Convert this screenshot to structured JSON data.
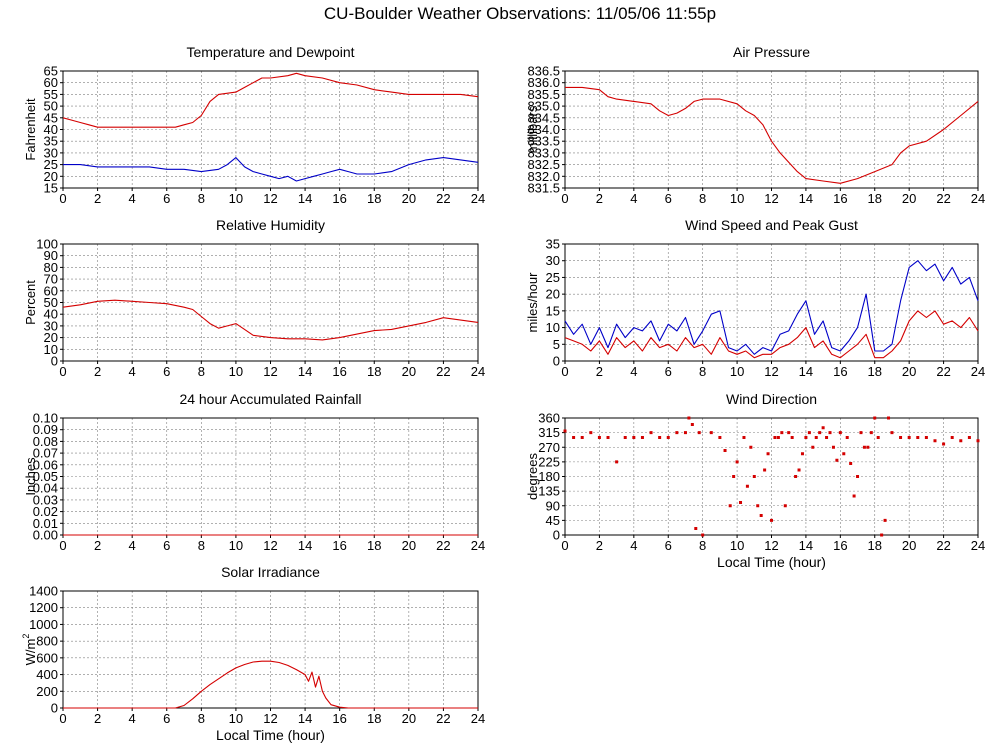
{
  "page": {
    "title": "CU-Boulder Weather Observations: 11/05/06 11:55p"
  },
  "colors": {
    "primary": "#d40000",
    "secondary": "#0000c8",
    "grid": "#808080"
  },
  "chart_data": [
    {
      "type": "line",
      "title": "Temperature and Dewpoint",
      "ylabel": "Fahrenheit",
      "xlabel": "",
      "xlim": [
        0,
        24
      ],
      "ylim": [
        15,
        65
      ],
      "xticks": [
        0,
        2,
        4,
        6,
        8,
        10,
        12,
        14,
        16,
        18,
        20,
        22,
        24
      ],
      "yticks": [
        15,
        20,
        25,
        30,
        35,
        40,
        45,
        50,
        55,
        60,
        65
      ],
      "grid": true,
      "series": [
        {
          "color": "#d40000",
          "x": [
            0,
            0.5,
            1,
            1.5,
            2,
            3,
            4,
            5,
            6,
            6.5,
            7,
            7.5,
            8,
            8.5,
            9,
            10,
            10.5,
            11,
            11.5,
            12,
            13,
            13.5,
            14,
            15,
            16,
            17,
            18,
            19,
            20,
            21,
            22,
            23,
            24
          ],
          "y": [
            45,
            44,
            43,
            42,
            41,
            41,
            41,
            41,
            41,
            41,
            42,
            43,
            46,
            52,
            55,
            56,
            58,
            60,
            62,
            62,
            63,
            64,
            63,
            62,
            60,
            59,
            57,
            56,
            55,
            55,
            55,
            55,
            54
          ]
        },
        {
          "color": "#0000c8",
          "x": [
            0,
            1,
            2,
            3,
            4,
            5,
            6,
            7,
            8,
            9,
            9.5,
            10,
            10.5,
            11,
            11.5,
            12,
            12.5,
            13,
            13.5,
            14,
            14.5,
            15,
            15.5,
            16,
            16.5,
            17,
            18,
            19,
            20,
            21,
            22,
            23,
            24
          ],
          "y": [
            25,
            25,
            24,
            24,
            24,
            24,
            23,
            23,
            22,
            23,
            25,
            28,
            24,
            22,
            21,
            20,
            19,
            20,
            18,
            19,
            20,
            21,
            22,
            23,
            22,
            21,
            21,
            22,
            25,
            27,
            28,
            27,
            26
          ]
        }
      ]
    },
    {
      "type": "line",
      "title": "Air Pressure",
      "ylabel": "millibars",
      "xlabel": "",
      "xlim": [
        0,
        24
      ],
      "ylim": [
        831.5,
        836.5
      ],
      "xticks": [
        0,
        2,
        4,
        6,
        8,
        10,
        12,
        14,
        16,
        18,
        20,
        22,
        24
      ],
      "yticks": [
        831.5,
        832.0,
        832.5,
        833.0,
        833.5,
        834.0,
        834.5,
        835.0,
        835.5,
        836.0,
        836.5
      ],
      "ytick_labels": [
        "831.5",
        "832.0",
        "832.5",
        "833.0",
        "833.5",
        "834.0",
        "834.5",
        "835.0",
        "835.5",
        "836.0",
        "836.5"
      ],
      "grid": true,
      "series": [
        {
          "color": "#d40000",
          "x": [
            0,
            1,
            2,
            2.5,
            3,
            4,
            5,
            5.5,
            6,
            6.5,
            7,
            7.5,
            8,
            9,
            10,
            10.5,
            11,
            11.5,
            12,
            12.5,
            13,
            13.5,
            14,
            15,
            16,
            17,
            18,
            19,
            19.5,
            20,
            21,
            22,
            23,
            24
          ],
          "y": [
            835.8,
            835.8,
            835.7,
            835.4,
            835.3,
            835.2,
            835.1,
            834.8,
            834.6,
            834.7,
            834.9,
            835.2,
            835.3,
            835.3,
            835.1,
            834.8,
            834.6,
            834.2,
            833.5,
            833.0,
            832.6,
            832.2,
            831.9,
            831.8,
            831.7,
            831.9,
            832.2,
            832.5,
            833.0,
            833.3,
            833.5,
            834.0,
            834.6,
            835.2
          ]
        }
      ]
    },
    {
      "type": "line",
      "title": "Relative Humidity",
      "ylabel": "Percent",
      "xlabel": "",
      "xlim": [
        0,
        24
      ],
      "ylim": [
        0,
        100
      ],
      "xticks": [
        0,
        2,
        4,
        6,
        8,
        10,
        12,
        14,
        16,
        18,
        20,
        22,
        24
      ],
      "yticks": [
        0,
        10,
        20,
        30,
        40,
        50,
        60,
        70,
        80,
        90,
        100
      ],
      "grid": true,
      "series": [
        {
          "color": "#d40000",
          "x": [
            0,
            1,
            2,
            3,
            4,
            5,
            6,
            7,
            7.5,
            8,
            8.5,
            9,
            9.5,
            10,
            10.5,
            11,
            12,
            13,
            14,
            15,
            16,
            17,
            18,
            19,
            20,
            21,
            22,
            23,
            24
          ],
          "y": [
            46,
            48,
            51,
            52,
            51,
            50,
            49,
            46,
            44,
            38,
            32,
            28,
            30,
            32,
            27,
            22,
            20,
            19,
            19,
            18,
            20,
            23,
            26,
            27,
            30,
            33,
            37,
            35,
            33
          ]
        }
      ]
    },
    {
      "type": "line",
      "title": "Wind Speed and Peak Gust",
      "ylabel": "miles/hour",
      "xlabel": "",
      "xlim": [
        0,
        24
      ],
      "ylim": [
        0,
        35
      ],
      "xticks": [
        0,
        2,
        4,
        6,
        8,
        10,
        12,
        14,
        16,
        18,
        20,
        22,
        24
      ],
      "yticks": [
        0,
        5,
        10,
        15,
        20,
        25,
        30,
        35
      ],
      "grid": true,
      "series": [
        {
          "color": "#0000c8",
          "x": [
            0,
            0.5,
            1,
            1.5,
            2,
            2.5,
            3,
            3.5,
            4,
            4.5,
            5,
            5.5,
            6,
            6.5,
            7,
            7.5,
            8,
            8.5,
            9,
            9.5,
            10,
            10.5,
            11,
            11.5,
            12,
            12.5,
            13,
            13.5,
            14,
            14.5,
            15,
            15.5,
            16,
            16.5,
            17,
            17.5,
            18,
            18.5,
            19,
            19.5,
            20,
            20.5,
            21,
            21.5,
            22,
            22.5,
            23,
            23.5,
            24
          ],
          "y": [
            12,
            8,
            11,
            5,
            10,
            4,
            11,
            7,
            10,
            9,
            12,
            6,
            11,
            9,
            13,
            5,
            9,
            14,
            15,
            4,
            3,
            5,
            2,
            4,
            3,
            8,
            9,
            14,
            18,
            8,
            12,
            4,
            3,
            6,
            10,
            20,
            3,
            3,
            5,
            18,
            28,
            30,
            27,
            29,
            24,
            28,
            23,
            25,
            18
          ]
        },
        {
          "color": "#d40000",
          "x": [
            0,
            0.5,
            1,
            1.5,
            2,
            2.5,
            3,
            3.5,
            4,
            4.5,
            5,
            5.5,
            6,
            6.5,
            7,
            7.5,
            8,
            8.5,
            9,
            9.5,
            10,
            10.5,
            11,
            11.5,
            12,
            12.5,
            13,
            13.5,
            14,
            14.5,
            15,
            15.5,
            16,
            16.5,
            17,
            17.5,
            18,
            18.5,
            19,
            19.5,
            20,
            20.5,
            21,
            21.5,
            22,
            22.5,
            23,
            23.5,
            24
          ],
          "y": [
            7,
            6,
            5,
            3,
            6,
            2,
            7,
            4,
            6,
            3,
            7,
            4,
            5,
            3,
            7,
            4,
            5,
            2,
            7,
            3,
            2,
            3,
            1,
            2,
            2,
            4,
            5,
            7,
            10,
            4,
            6,
            2,
            1,
            3,
            5,
            8,
            1,
            1,
            3,
            6,
            12,
            15,
            13,
            15,
            11,
            12,
            10,
            13,
            9
          ]
        }
      ]
    },
    {
      "type": "line",
      "title": "24 hour Accumulated Rainfall",
      "ylabel": "Inches",
      "xlabel": "",
      "xlim": [
        0,
        24
      ],
      "ylim": [
        0,
        0.1
      ],
      "xticks": [
        0,
        2,
        4,
        6,
        8,
        10,
        12,
        14,
        16,
        18,
        20,
        22,
        24
      ],
      "yticks": [
        0,
        0.01,
        0.02,
        0.03,
        0.04,
        0.05,
        0.06,
        0.07,
        0.08,
        0.09,
        0.1
      ],
      "ytick_labels": [
        "0.00",
        "0.01",
        "0.02",
        "0.03",
        "0.04",
        "0.05",
        "0.06",
        "0.07",
        "0.08",
        "0.09",
        "0.10"
      ],
      "grid": true,
      "series": [
        {
          "color": "#d40000",
          "x": [
            0,
            24
          ],
          "y": [
            0,
            0
          ]
        }
      ]
    },
    {
      "type": "scatter",
      "title": "Wind Direction",
      "ylabel": "degrees",
      "xlabel": "Local Time (hour)",
      "xlim": [
        0,
        24
      ],
      "ylim": [
        0,
        360
      ],
      "xticks": [
        0,
        2,
        4,
        6,
        8,
        10,
        12,
        14,
        16,
        18,
        20,
        22,
        24
      ],
      "yticks": [
        0,
        45,
        90,
        135,
        180,
        225,
        270,
        315,
        360
      ],
      "grid": true,
      "series": [
        {
          "color": "#d40000",
          "x": [
            0,
            0.5,
            1,
            1.5,
            2,
            2.5,
            3,
            3.5,
            4,
            4.5,
            5,
            5.5,
            6,
            6.5,
            7,
            7.2,
            7.4,
            7.6,
            7.8,
            8,
            8.5,
            9,
            9.3,
            9.6,
            9.8,
            10,
            10.2,
            10.4,
            10.6,
            10.8,
            11,
            11.2,
            11.4,
            11.6,
            11.8,
            12,
            12.2,
            12.4,
            12.6,
            12.8,
            13,
            13.2,
            13.4,
            13.6,
            13.8,
            14,
            14.2,
            14.4,
            14.6,
            14.8,
            15,
            15.2,
            15.4,
            15.6,
            15.8,
            16,
            16.2,
            16.4,
            16.6,
            16.8,
            17,
            17.2,
            17.4,
            17.6,
            17.8,
            18,
            18.2,
            18.4,
            18.6,
            18.8,
            19,
            19.5,
            20,
            20.5,
            21,
            21.5,
            22,
            22.5,
            23,
            23.5,
            24
          ],
          "y": [
            320,
            300,
            300,
            315,
            300,
            300,
            225,
            300,
            300,
            300,
            315,
            300,
            300,
            315,
            315,
            360,
            340,
            20,
            315,
            0,
            315,
            300,
            260,
            90,
            180,
            225,
            100,
            300,
            150,
            270,
            180,
            90,
            60,
            200,
            250,
            45,
            300,
            300,
            315,
            90,
            315,
            300,
            180,
            200,
            250,
            300,
            315,
            270,
            300,
            315,
            330,
            300,
            315,
            270,
            230,
            315,
            250,
            300,
            220,
            120,
            180,
            315,
            270,
            270,
            315,
            360,
            300,
            0,
            45,
            360,
            315,
            300,
            300,
            300,
            300,
            290,
            280,
            300,
            290,
            300,
            290
          ]
        }
      ]
    },
    {
      "type": "area",
      "title": "Solar Irradiance",
      "ylabel": "W/m",
      "ylabel_sup": "2",
      "xlabel": "Local Time (hour)",
      "xlim": [
        0,
        24
      ],
      "ylim": [
        0,
        1400
      ],
      "xticks": [
        0,
        2,
        4,
        6,
        8,
        10,
        12,
        14,
        16,
        18,
        20,
        22,
        24
      ],
      "yticks": [
        0,
        200,
        400,
        600,
        800,
        1000,
        1200,
        1400
      ],
      "grid": true,
      "series": [
        {
          "color": "#d40000",
          "x": [
            0,
            6.5,
            7,
            7.5,
            8,
            8.5,
            9,
            9.5,
            10,
            10.5,
            11,
            11.5,
            12,
            12.5,
            13,
            13.5,
            14,
            14.2,
            14.4,
            14.6,
            14.8,
            15,
            15.2,
            15.5,
            16,
            16.5,
            17,
            24
          ],
          "y": [
            0,
            0,
            30,
            110,
            200,
            280,
            350,
            420,
            480,
            520,
            550,
            560,
            560,
            545,
            510,
            460,
            400,
            320,
            430,
            250,
            380,
            200,
            120,
            40,
            10,
            0,
            0,
            0
          ]
        }
      ]
    }
  ]
}
